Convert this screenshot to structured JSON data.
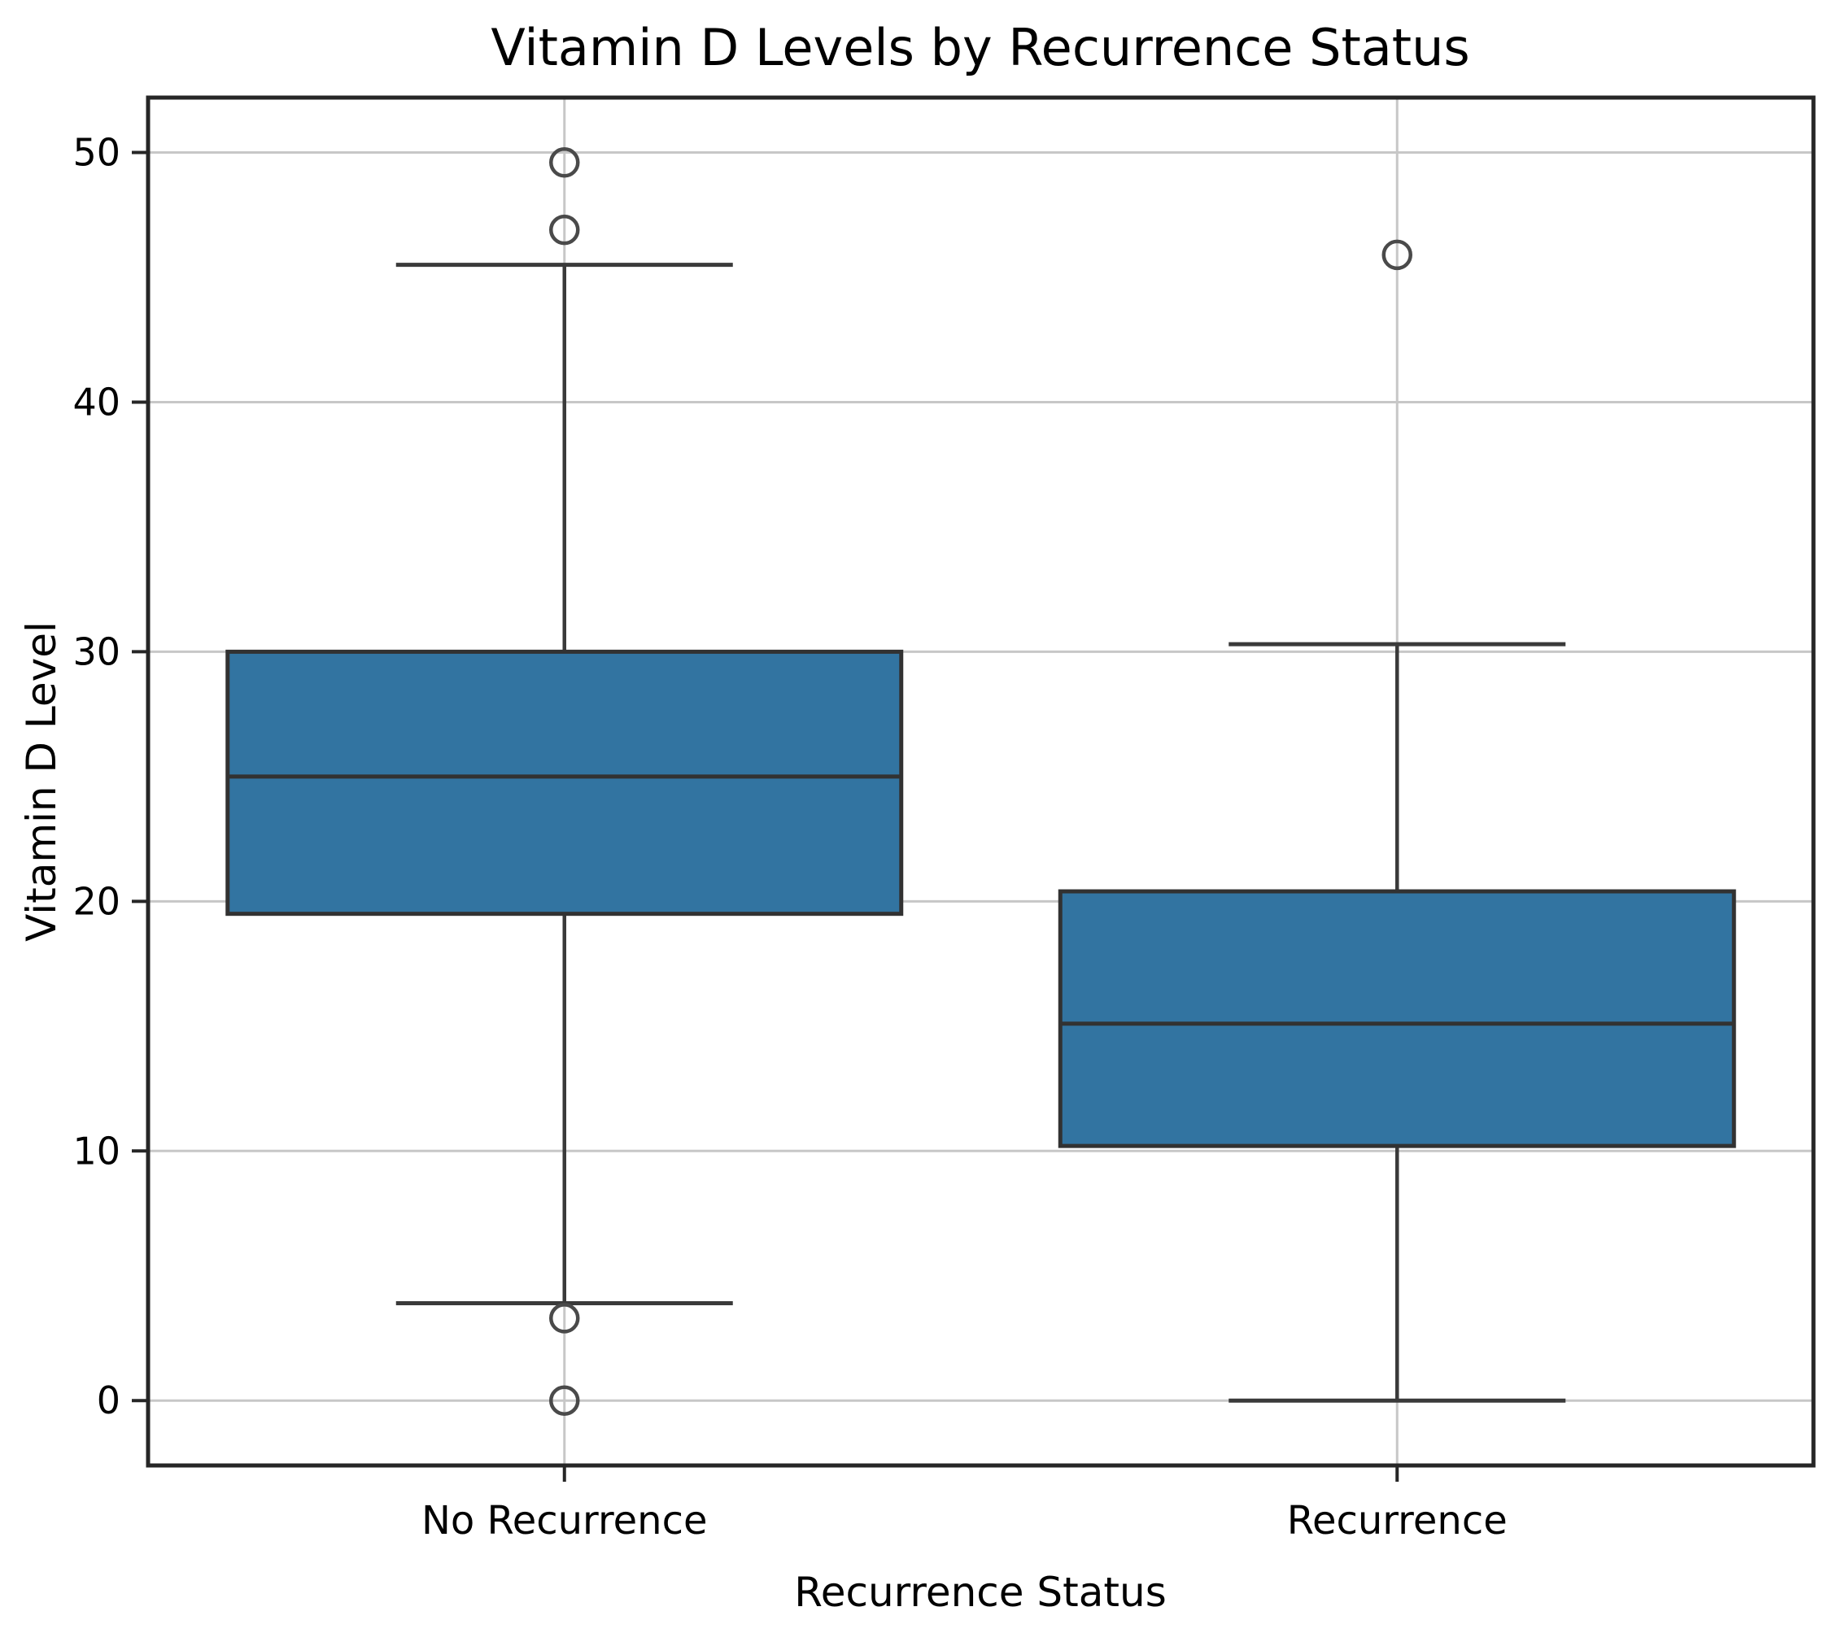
{
  "figure": {
    "background": "#ffffff"
  },
  "chart_data": {
    "type": "boxplot",
    "title": "Vitamin D Levels by Recurrence Status",
    "xlabel": "Recurrence Status",
    "ylabel": "Vitamin D Level",
    "categories": [
      "No Recurrence",
      "Recurrence"
    ],
    "ylim": [
      -2.6,
      52.2
    ],
    "yticks": [
      0,
      10,
      20,
      30,
      40,
      50
    ],
    "grid": "both",
    "legend": "none",
    "series": [
      {
        "category": "No Recurrence",
        "q1": 19.5,
        "median": 25.0,
        "q3": 30.0,
        "whisker_low": 3.9,
        "whisker_high": 45.5,
        "outliers": [
          49.6,
          46.9,
          3.3,
          0.0
        ]
      },
      {
        "category": "Recurrence",
        "q1": 10.2,
        "median": 15.1,
        "q3": 20.4,
        "whisker_low": 0.0,
        "whisker_high": 30.3,
        "outliers": [
          45.9
        ]
      }
    ],
    "colors": {
      "box_fill": "#3274a1",
      "box_edge": "#323232",
      "median": "#323232",
      "whisker": "#3a3a3a",
      "cap": "#3a3a3a",
      "outlier": "#4a4a4a",
      "grid": "#c7c7c7",
      "spine": "#262626",
      "tick": "#262626",
      "text": "#000000"
    }
  }
}
